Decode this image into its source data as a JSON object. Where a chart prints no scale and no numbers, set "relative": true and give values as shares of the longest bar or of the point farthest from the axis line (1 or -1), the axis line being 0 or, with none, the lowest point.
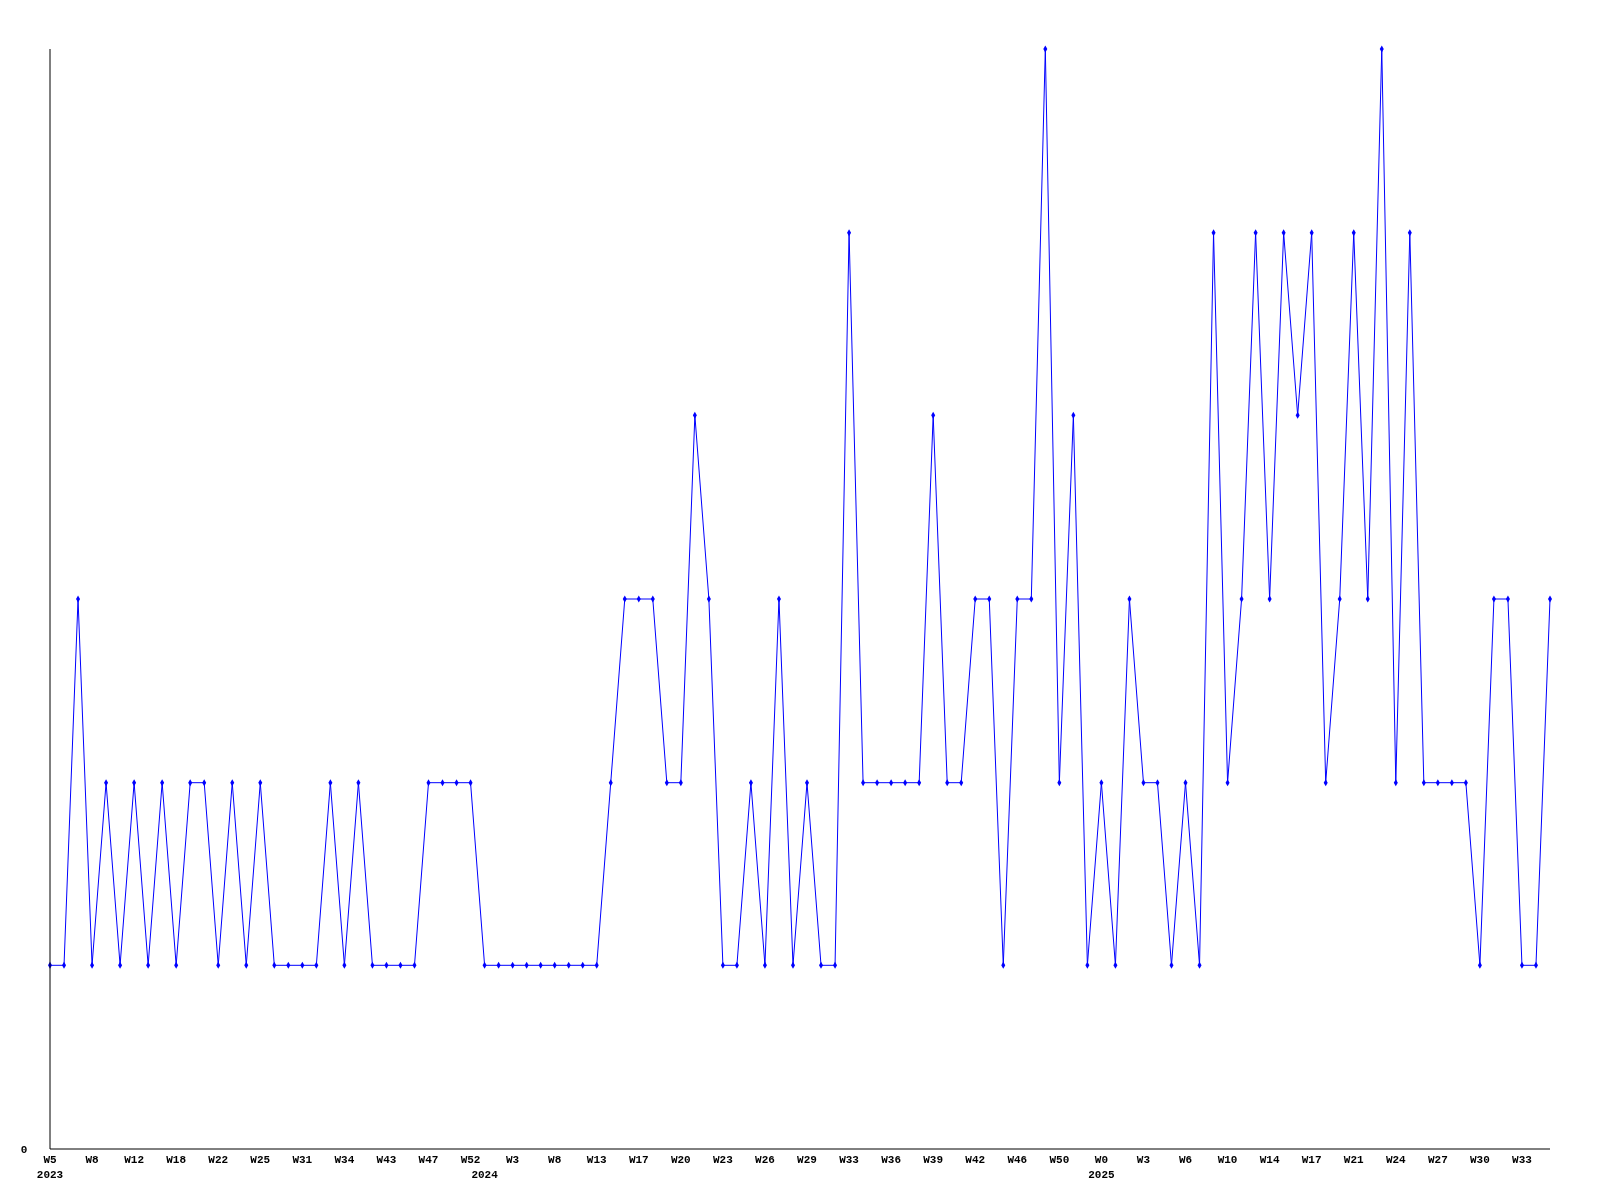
{
  "chart_data": {
    "type": "line",
    "relative": true,
    "marker": "diamond",
    "categories": [
      "W5\n2023",
      null,
      null,
      "W8",
      null,
      null,
      "W12",
      null,
      null,
      "W18",
      null,
      null,
      "W22",
      null,
      null,
      "W25",
      null,
      null,
      "W31",
      null,
      null,
      "W34",
      null,
      null,
      "W43",
      null,
      null,
      "W47",
      null,
      null,
      "W52",
      "\n2024",
      null,
      "W3",
      null,
      null,
      "W8",
      null,
      null,
      "W13",
      null,
      null,
      "W17",
      null,
      null,
      "W20",
      null,
      null,
      "W23",
      null,
      null,
      "W26",
      null,
      null,
      "W29",
      null,
      null,
      "W33",
      null,
      null,
      "W36",
      null,
      null,
      "W39",
      null,
      null,
      "W42",
      null,
      null,
      "W46",
      null,
      null,
      "W50",
      null,
      null,
      "W0\n2025",
      null,
      null,
      "W3",
      null,
      null,
      "W6",
      null,
      null,
      "W10",
      null,
      null,
      "W14",
      null,
      null,
      "W17",
      null,
      null,
      "W21",
      null,
      null,
      "W24",
      null,
      null,
      "W27",
      null,
      null,
      "W30",
      null,
      null,
      "W33",
      null,
      null
    ],
    "series": [
      {
        "color": "#0000ff",
        "values": [
          0.167,
          0.167,
          0.5,
          0.167,
          0.333,
          0.167,
          0.333,
          0.167,
          0.333,
          0.167,
          0.333,
          0.333,
          0.167,
          0.333,
          0.167,
          0.333,
          0.167,
          0.167,
          0.167,
          0.167,
          0.333,
          0.167,
          0.333,
          0.167,
          0.167,
          0.167,
          0.167,
          0.333,
          0.333,
          0.333,
          0.333,
          0.167,
          0.167,
          0.167,
          0.167,
          0.167,
          0.167,
          0.167,
          0.167,
          0.167,
          0.333,
          0.5,
          0.5,
          0.5,
          0.333,
          0.333,
          0.667,
          0.5,
          0.167,
          0.167,
          0.333,
          0.167,
          0.5,
          0.167,
          0.333,
          0.167,
          0.167,
          0.833,
          0.333,
          0.333,
          0.333,
          0.333,
          0.333,
          0.667,
          0.333,
          0.333,
          0.5,
          0.5,
          0.167,
          0.5,
          0.5,
          1,
          0.333,
          0.667,
          0.167,
          0.333,
          0.167,
          0.5,
          0.333,
          0.333,
          0.167,
          0.333,
          0.167,
          0.833,
          0.333,
          0.5,
          0.833,
          0.5,
          0.833,
          0.667,
          0.833,
          0.333,
          0.5,
          0.833,
          0.5,
          1,
          0.333,
          0.833,
          0.333,
          0.333,
          0.333,
          0.333,
          0.167,
          0.5,
          0.5,
          0.167,
          0.167,
          0.5
        ]
      }
    ],
    "annotations": [
      "0"
    ]
  }
}
